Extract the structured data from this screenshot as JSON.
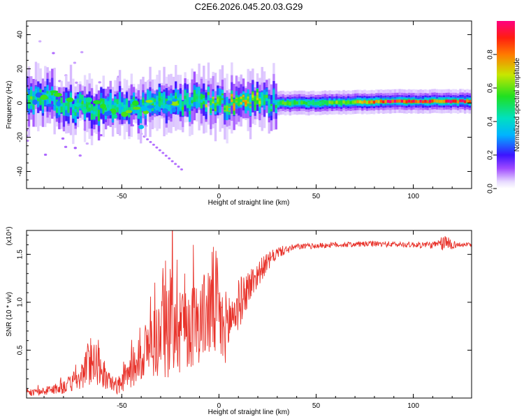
{
  "chart_data": [
    {
      "type": "heatmap",
      "title": "C2E6.2026.045.20.03.G29",
      "xlabel": "Height of straight line (km)",
      "ylabel": "Frequency (Hz)",
      "xlim": [
        -99,
        130
      ],
      "ylim": [
        -50,
        48
      ],
      "xticks": [
        -50,
        0,
        50,
        100
      ],
      "yticks": [
        -40,
        -20,
        0,
        20,
        40
      ],
      "colorbar": {
        "label": "Normalized spectral amplitude",
        "range": [
          0,
          1
        ],
        "ticks": [
          "0.0",
          "0.2",
          "0.4",
          "0.6",
          "0.8"
        ],
        "tick_values": [
          0,
          0.2,
          0.4,
          0.6,
          0.8
        ]
      },
      "ridge": [
        {
          "x": -95,
          "f": 2.5,
          "a": 0.55
        },
        {
          "x": -85,
          "f": 2.0,
          "a": 0.5
        },
        {
          "x": -75,
          "f": -2.0,
          "a": 0.55
        },
        {
          "x": -65,
          "f": -3.0,
          "a": 0.45
        },
        {
          "x": -55,
          "f": -4.0,
          "a": 0.5
        },
        {
          "x": -45,
          "f": -2.0,
          "a": 0.45
        },
        {
          "x": -35,
          "f": -1.5,
          "a": 0.5
        },
        {
          "x": -25,
          "f": -0.5,
          "a": 0.5
        },
        {
          "x": -15,
          "f": 0.2,
          "a": 0.55
        },
        {
          "x": -5,
          "f": 2.0,
          "a": 0.6
        },
        {
          "x": 0,
          "f": 0.5,
          "a": 0.6
        },
        {
          "x": 10,
          "f": 0.1,
          "a": 0.75
        },
        {
          "x": 25,
          "f": 0.0,
          "a": 0.55
        },
        {
          "x": 50,
          "f": 0.0,
          "a": 0.5
        },
        {
          "x": 75,
          "f": 0.6,
          "a": 0.7
        },
        {
          "x": 90,
          "f": 1.0,
          "a": 0.95
        },
        {
          "x": 110,
          "f": 1.0,
          "a": 0.85
        },
        {
          "x": 125,
          "f": 1.0,
          "a": 0.9
        }
      ]
    },
    {
      "type": "line",
      "xlabel": "Height of straight line (km)",
      "ylabel": "SNR (10 * v/v)",
      "y_multiplier": "(x10⁴)",
      "xlim": [
        -99,
        130
      ],
      "ylim": [
        0,
        1.75
      ],
      "xticks": [
        -50,
        0,
        50,
        100
      ],
      "yticks": [
        0.5,
        1.0,
        1.5
      ],
      "ytick_labels": [
        "0.5",
        "1.0",
        "1.5"
      ],
      "series": [
        {
          "name": "SNR",
          "color": "#e8322a",
          "envelope": [
            {
              "x": -99,
              "y": 0.05,
              "amp": 0.03
            },
            {
              "x": -90,
              "y": 0.07,
              "amp": 0.04
            },
            {
              "x": -80,
              "y": 0.12,
              "amp": 0.08
            },
            {
              "x": -72,
              "y": 0.18,
              "amp": 0.1
            },
            {
              "x": -65,
              "y": 0.45,
              "amp": 0.3
            },
            {
              "x": -60,
              "y": 0.22,
              "amp": 0.12
            },
            {
              "x": -52,
              "y": 0.12,
              "amp": 0.08
            },
            {
              "x": -45,
              "y": 0.3,
              "amp": 0.2
            },
            {
              "x": -38,
              "y": 0.5,
              "amp": 0.3
            },
            {
              "x": -30,
              "y": 0.65,
              "amp": 0.45
            },
            {
              "x": -22,
              "y": 0.9,
              "amp": 0.7
            },
            {
              "x": -15,
              "y": 0.75,
              "amp": 0.45
            },
            {
              "x": -8,
              "y": 0.85,
              "amp": 0.45
            },
            {
              "x": -2,
              "y": 1.0,
              "amp": 0.65
            },
            {
              "x": 2,
              "y": 0.7,
              "amp": 0.4
            },
            {
              "x": 8,
              "y": 0.9,
              "amp": 0.3
            },
            {
              "x": 15,
              "y": 1.15,
              "amp": 0.2
            },
            {
              "x": 22,
              "y": 1.35,
              "amp": 0.12
            },
            {
              "x": 30,
              "y": 1.52,
              "amp": 0.06
            },
            {
              "x": 40,
              "y": 1.58,
              "amp": 0.03
            },
            {
              "x": 60,
              "y": 1.6,
              "amp": 0.03
            },
            {
              "x": 80,
              "y": 1.61,
              "amp": 0.03
            },
            {
              "x": 100,
              "y": 1.6,
              "amp": 0.03
            },
            {
              "x": 112,
              "y": 1.6,
              "amp": 0.04
            },
            {
              "x": 117,
              "y": 1.62,
              "amp": 0.1
            },
            {
              "x": 122,
              "y": 1.6,
              "amp": 0.03
            },
            {
              "x": 130,
              "y": 1.6,
              "amp": 0.02
            }
          ]
        }
      ]
    }
  ]
}
